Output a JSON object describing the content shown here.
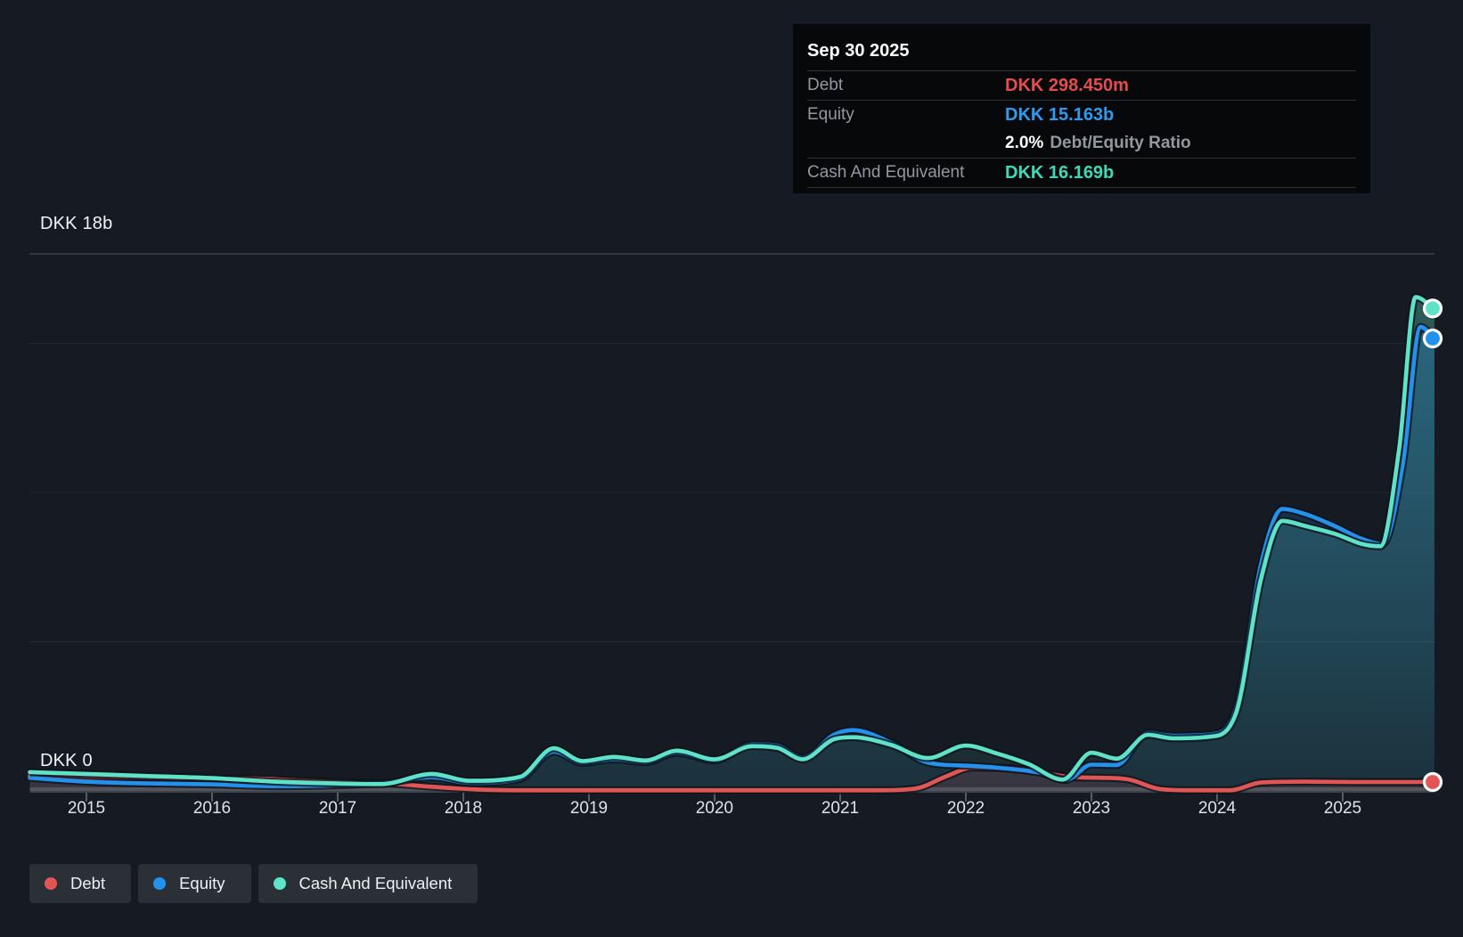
{
  "tooltip": {
    "date": "Sep 30 2025",
    "rows": {
      "debt_label": "Debt",
      "debt_value": "DKK 298.450m",
      "equity_label": "Equity",
      "equity_value": "DKK 15.163b",
      "ratio_value": "2.0%",
      "ratio_label": "Debt/Equity Ratio",
      "cash_label": "Cash And Equivalent",
      "cash_value": "DKK 16.169b"
    }
  },
  "y_axis": {
    "top_label": "DKK 18b",
    "zero_label": "DKK 0"
  },
  "x_axis": {
    "years": [
      "2015",
      "2016",
      "2017",
      "2018",
      "2019",
      "2020",
      "2021",
      "2022",
      "2023",
      "2024",
      "2025"
    ]
  },
  "legend": {
    "items": [
      {
        "label": "Debt",
        "color": "#e25555"
      },
      {
        "label": "Equity",
        "color": "#2491ec"
      },
      {
        "label": "Cash And Equivalent",
        "color": "#5fe3c8"
      }
    ]
  },
  "colors": {
    "background": "#151a23",
    "tooltip_bg": "#070809",
    "grid": "#242b33",
    "grid_top": "#3a414b",
    "axis_band": "#3c434b",
    "tick": "#555b63",
    "halo": "#0e141b",
    "marker_ring": "#ffffff",
    "debt_value": "#e64c4c",
    "equity_value": "#2e9bf3",
    "cash_value": "#40d9b6"
  },
  "chart_data": {
    "type": "area",
    "title": "Debt, Equity and Cash And Equivalent over time",
    "unit": "DKK billions",
    "x_unit": "year (decimal)",
    "ylim": [
      0,
      18
    ],
    "gridlines_b": [
      0,
      5,
      10,
      15,
      18
    ],
    "legend_position": "bottom-left",
    "as_of": "Sep 30 2025",
    "fill_order": [
      2,
      1,
      0
    ],
    "series": [
      {
        "name": "Debt",
        "color": "#e25555",
        "fill_top": 0.3,
        "fill_bottom": 0.14,
        "end_value_label": "DKK 298.450m",
        "points": [
          [
            2014.55,
            0.5
          ],
          [
            2015.0,
            0.43
          ],
          [
            2015.35,
            0.45
          ],
          [
            2015.7,
            0.41
          ],
          [
            2016.0,
            0.39
          ],
          [
            2016.3,
            0.42
          ],
          [
            2016.7,
            0.35
          ],
          [
            2017.0,
            0.3
          ],
          [
            2017.4,
            0.25
          ],
          [
            2017.75,
            0.14
          ],
          [
            2018.1,
            0.05
          ],
          [
            2018.5,
            0.02
          ],
          [
            2019.0,
            0.02
          ],
          [
            2019.6,
            0.02
          ],
          [
            2020.2,
            0.02
          ],
          [
            2020.8,
            0.02
          ],
          [
            2021.3,
            0.02
          ],
          [
            2021.6,
            0.08
          ],
          [
            2021.85,
            0.5
          ],
          [
            2022.05,
            0.78
          ],
          [
            2022.35,
            0.76
          ],
          [
            2022.6,
            0.62
          ],
          [
            2022.85,
            0.46
          ],
          [
            2023.1,
            0.44
          ],
          [
            2023.3,
            0.38
          ],
          [
            2023.55,
            0.06
          ],
          [
            2023.8,
            0.02
          ],
          [
            2024.1,
            0.02
          ],
          [
            2024.35,
            0.28
          ],
          [
            2024.7,
            0.31
          ],
          [
            2025.1,
            0.3
          ],
          [
            2025.45,
            0.3
          ],
          [
            2025.73,
            0.298
          ]
        ]
      },
      {
        "name": "Equity",
        "color": "#2491ec",
        "fill_top": 0.3,
        "fill_bottom": 0.06,
        "end_value_label": "DKK 15.163b",
        "points": [
          [
            2014.55,
            0.44
          ],
          [
            2015.0,
            0.31
          ],
          [
            2015.5,
            0.25
          ],
          [
            2016.0,
            0.22
          ],
          [
            2016.5,
            0.16
          ],
          [
            2017.0,
            0.19
          ],
          [
            2017.4,
            0.28
          ],
          [
            2017.75,
            0.46
          ],
          [
            2018.05,
            0.27
          ],
          [
            2018.45,
            0.4
          ],
          [
            2018.72,
            1.32
          ],
          [
            2018.95,
            0.94
          ],
          [
            2019.2,
            1.06
          ],
          [
            2019.45,
            0.96
          ],
          [
            2019.7,
            1.28
          ],
          [
            2020.0,
            1.02
          ],
          [
            2020.3,
            1.57
          ],
          [
            2020.5,
            1.52
          ],
          [
            2020.7,
            1.12
          ],
          [
            2020.95,
            1.88
          ],
          [
            2021.1,
            2.04
          ],
          [
            2021.4,
            1.63
          ],
          [
            2021.7,
            0.95
          ],
          [
            2022.05,
            0.84
          ],
          [
            2022.35,
            0.74
          ],
          [
            2022.6,
            0.6
          ],
          [
            2022.8,
            0.37
          ],
          [
            2023.0,
            0.88
          ],
          [
            2023.2,
            0.87
          ],
          [
            2023.45,
            1.95
          ],
          [
            2023.65,
            1.85
          ],
          [
            2023.95,
            1.9
          ],
          [
            2024.15,
            2.8
          ],
          [
            2024.35,
            7.6
          ],
          [
            2024.52,
            9.45
          ],
          [
            2024.7,
            9.28
          ],
          [
            2024.95,
            8.85
          ],
          [
            2025.15,
            8.45
          ],
          [
            2025.32,
            8.28
          ],
          [
            2025.48,
            11.0
          ],
          [
            2025.62,
            15.55
          ],
          [
            2025.73,
            15.163
          ]
        ]
      },
      {
        "name": "Cash And Equivalent",
        "color": "#5fe3c8",
        "fill_top": 0.34,
        "fill_bottom": 0.08,
        "end_value_label": "DKK 16.169b",
        "points": [
          [
            2014.55,
            0.63
          ],
          [
            2015.0,
            0.57
          ],
          [
            2015.5,
            0.5
          ],
          [
            2016.0,
            0.43
          ],
          [
            2016.5,
            0.31
          ],
          [
            2017.0,
            0.25
          ],
          [
            2017.35,
            0.23
          ],
          [
            2017.75,
            0.57
          ],
          [
            2018.05,
            0.34
          ],
          [
            2018.45,
            0.47
          ],
          [
            2018.72,
            1.43
          ],
          [
            2018.95,
            1.0
          ],
          [
            2019.2,
            1.14
          ],
          [
            2019.45,
            1.02
          ],
          [
            2019.7,
            1.35
          ],
          [
            2020.0,
            1.06
          ],
          [
            2020.3,
            1.5
          ],
          [
            2020.5,
            1.44
          ],
          [
            2020.7,
            1.06
          ],
          [
            2020.95,
            1.73
          ],
          [
            2021.1,
            1.8
          ],
          [
            2021.4,
            1.55
          ],
          [
            2021.7,
            1.1
          ],
          [
            2022.0,
            1.52
          ],
          [
            2022.25,
            1.25
          ],
          [
            2022.5,
            0.9
          ],
          [
            2022.77,
            0.38
          ],
          [
            2023.0,
            1.28
          ],
          [
            2023.2,
            1.08
          ],
          [
            2023.45,
            1.88
          ],
          [
            2023.65,
            1.76
          ],
          [
            2023.95,
            1.82
          ],
          [
            2024.15,
            2.6
          ],
          [
            2024.35,
            7.1
          ],
          [
            2024.52,
            9.05
          ],
          [
            2024.7,
            8.88
          ],
          [
            2024.95,
            8.6
          ],
          [
            2025.15,
            8.28
          ],
          [
            2025.3,
            8.2
          ],
          [
            2025.45,
            11.5
          ],
          [
            2025.58,
            16.55
          ],
          [
            2025.73,
            16.169
          ]
        ]
      }
    ]
  }
}
